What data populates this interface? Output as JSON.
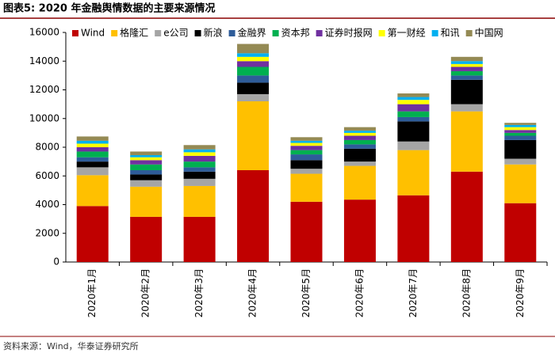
{
  "chart_data": {
    "type": "bar",
    "stacked": true,
    "title": "图表5:  2020 年金融舆情数据的主要来源情况",
    "note": "资料来源：Wind，华泰证券研究所",
    "categories": [
      "2020年1月",
      "2020年2月",
      "2020年3月",
      "2020年4月",
      "2020年5月",
      "2020年6月",
      "2020年7月",
      "2020年8月",
      "2020年9月"
    ],
    "series": [
      {
        "name": "Wind",
        "color": "#c00000",
        "values": [
          3900,
          3150,
          3150,
          6400,
          4200,
          4350,
          4650,
          6300,
          4100
        ]
      },
      {
        "name": "格隆汇",
        "color": "#ffc000",
        "values": [
          2150,
          2100,
          2150,
          4800,
          1950,
          2350,
          3150,
          4200,
          2700
        ]
      },
      {
        "name": "e公司",
        "color": "#a5a5a5",
        "values": [
          550,
          450,
          500,
          500,
          350,
          300,
          600,
          500,
          400
        ]
      },
      {
        "name": "新浪",
        "color": "#000000",
        "values": [
          400,
          400,
          500,
          800,
          600,
          900,
          1400,
          1700,
          1300
        ]
      },
      {
        "name": "金融界",
        "color": "#2e5c99",
        "values": [
          300,
          300,
          300,
          500,
          400,
          300,
          300,
          300,
          300
        ]
      },
      {
        "name": "资本邦",
        "color": "#00b050",
        "values": [
          400,
          400,
          400,
          600,
          300,
          300,
          400,
          300,
          200
        ]
      },
      {
        "name": "证券时报网",
        "color": "#7030a0",
        "values": [
          300,
          300,
          400,
          400,
          300,
          300,
          500,
          300,
          200
        ]
      },
      {
        "name": "第一财经",
        "color": "#ffff00",
        "values": [
          250,
          200,
          250,
          300,
          200,
          200,
          300,
          200,
          200
        ]
      },
      {
        "name": "和讯",
        "color": "#00b0f0",
        "values": [
          200,
          150,
          200,
          250,
          150,
          150,
          200,
          200,
          150
        ]
      },
      {
        "name": "中国网",
        "color": "#948a54",
        "values": [
          300,
          250,
          300,
          650,
          250,
          250,
          250,
          300,
          150
        ]
      }
    ],
    "ylim": [
      0,
      16000
    ],
    "yticks": [
      0,
      2000,
      4000,
      6000,
      8000,
      10000,
      12000,
      14000,
      16000
    ],
    "grid": false,
    "legend": "top"
  }
}
